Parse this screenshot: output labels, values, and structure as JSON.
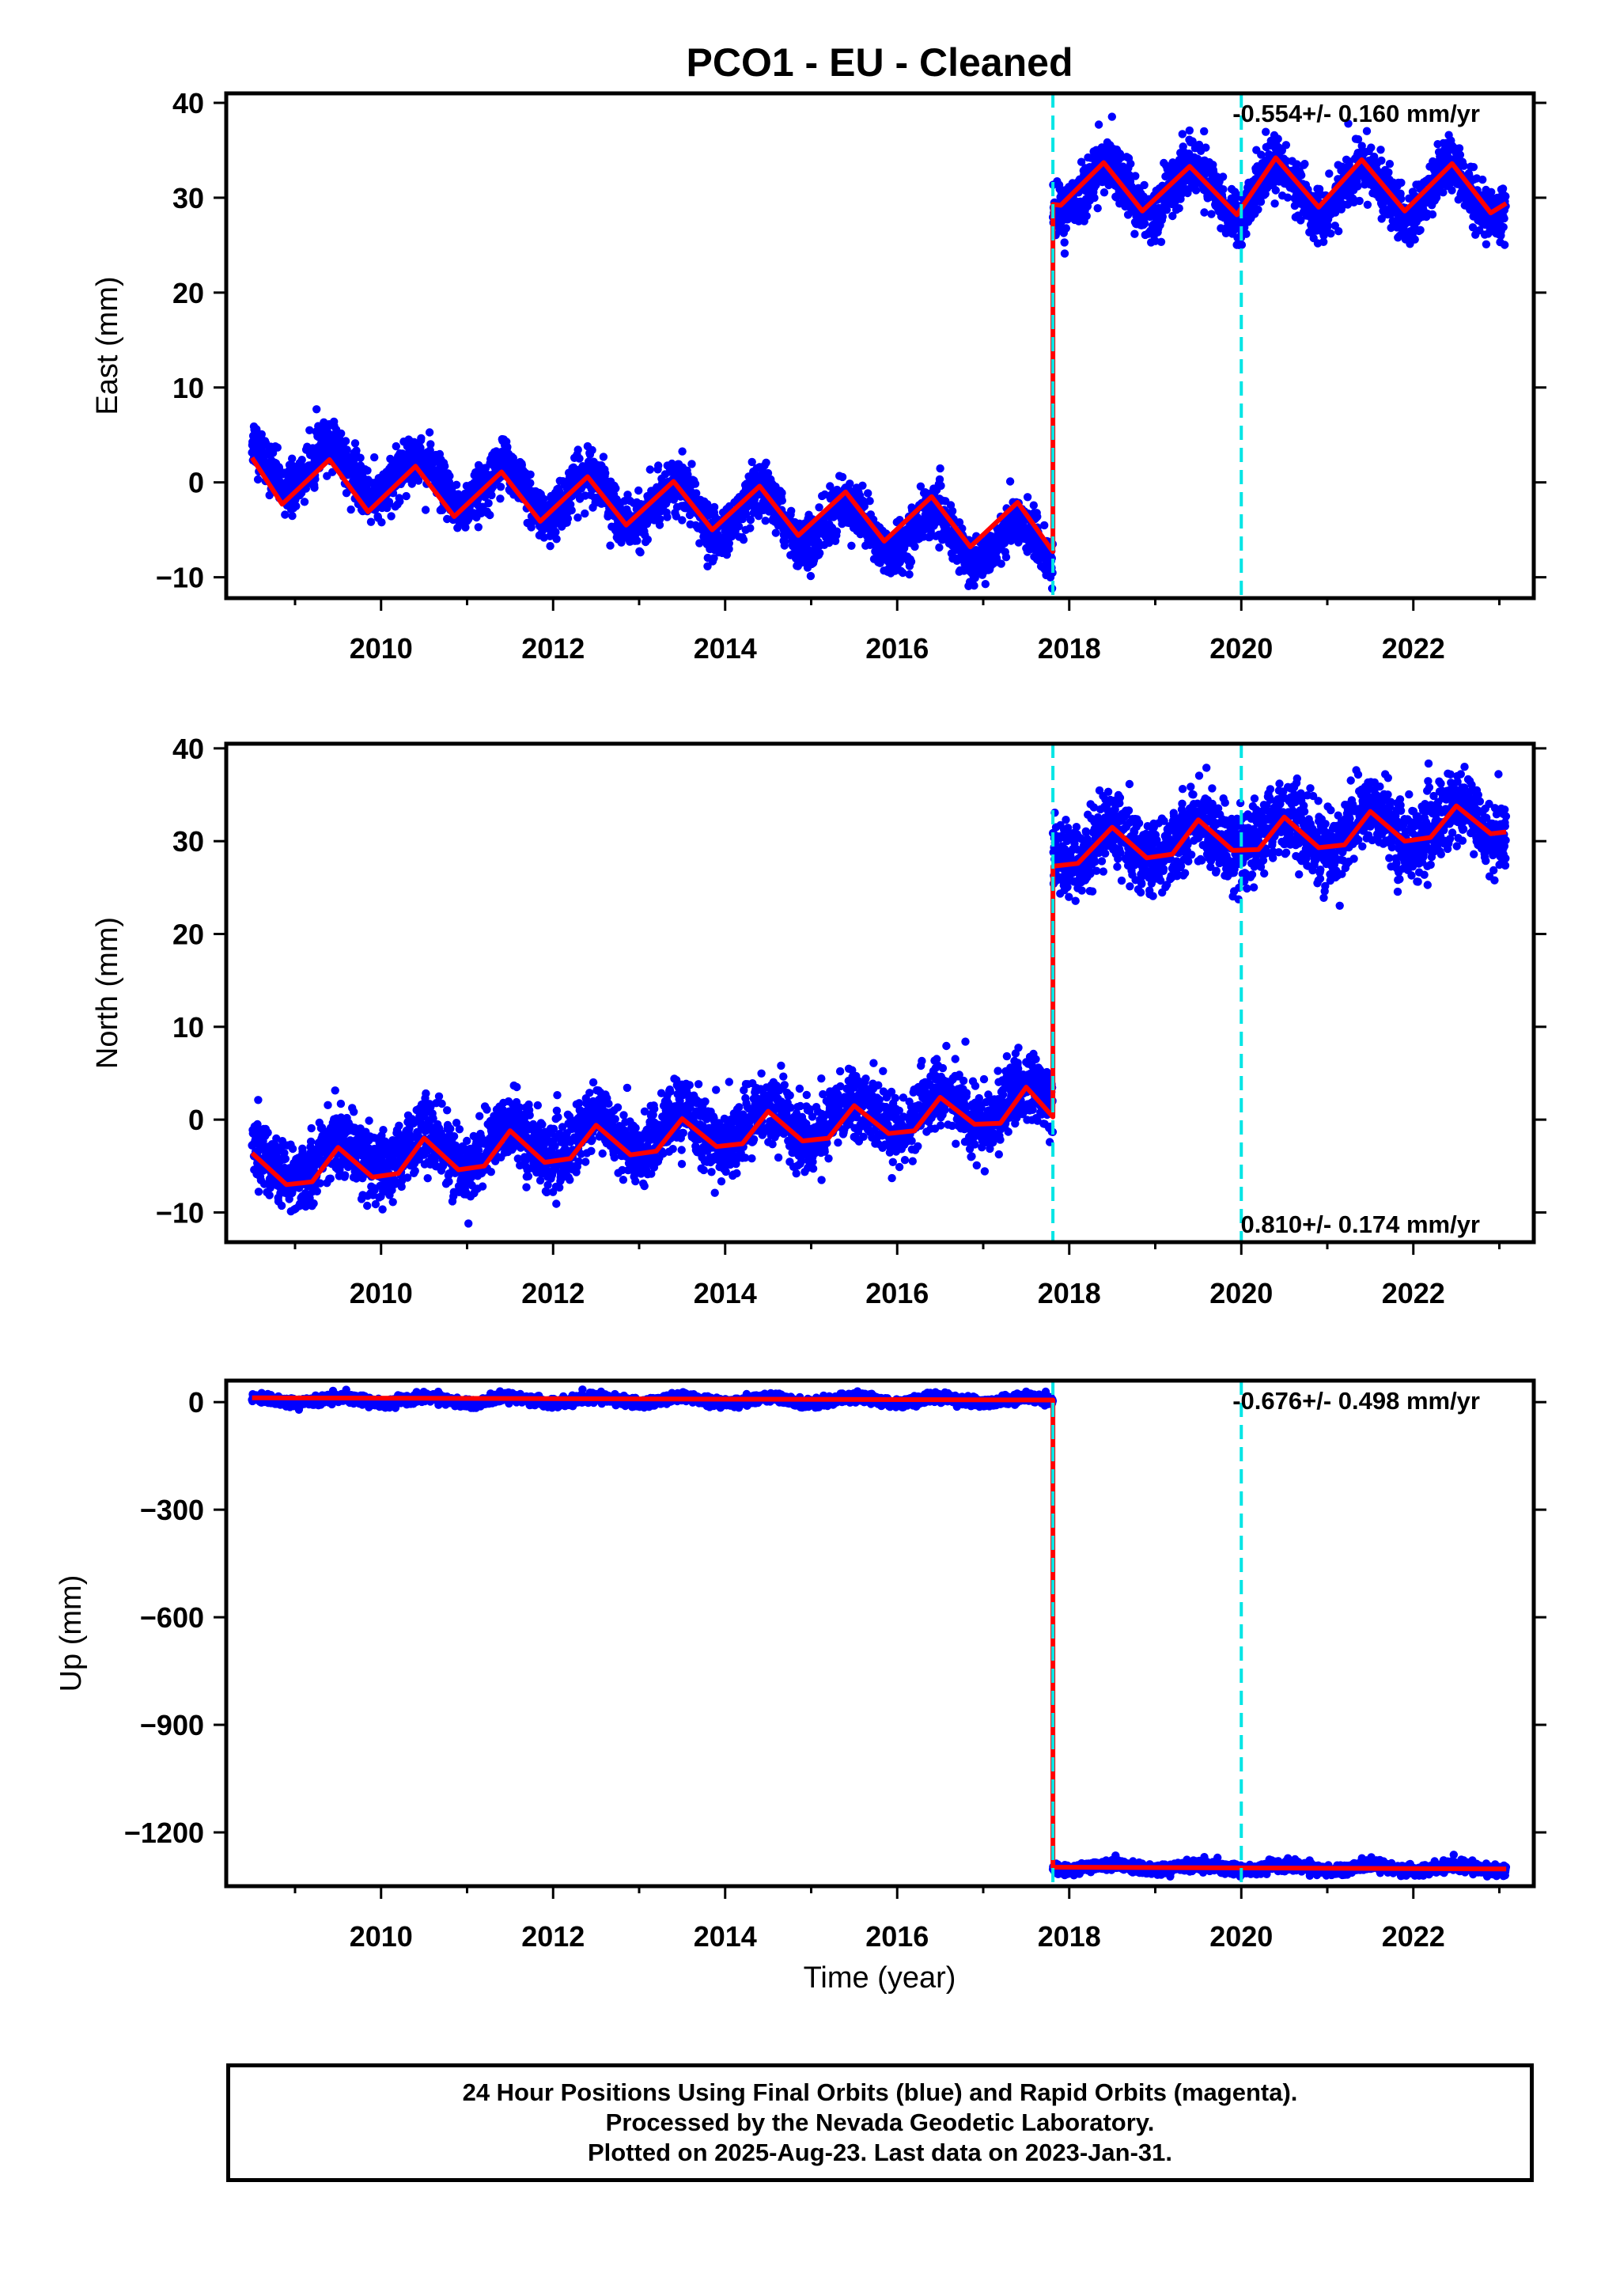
{
  "title": "PCO1  - EU - Cleaned",
  "xlabel": "Time (year)",
  "colors": {
    "data": "#0000ff",
    "model": "#ff0000",
    "breaks": "#00e5e5",
    "frame": "#000000"
  },
  "chart_data": [
    {
      "type": "scatter",
      "name": "east",
      "ylabel": "East (mm)",
      "rate_text": "-0.554+/- 0.160 mm/yr",
      "rate_position": "top-right",
      "xlim": [
        2008.2,
        2023.4
      ],
      "ylim": [
        -12.2,
        41
      ],
      "x_ticks": [
        2010,
        2012,
        2014,
        2016,
        2018,
        2020,
        2022
      ],
      "x_tick_labels": [
        "2010",
        "2012",
        "2014",
        "2016",
        "2018",
        "2020",
        "2022"
      ],
      "y_ticks": [
        -10,
        0,
        10,
        20,
        30,
        40
      ],
      "y_tick_labels": [
        "−10",
        "0",
        "10",
        "20",
        "30",
        "40"
      ],
      "breaks": [
        2017.81,
        2020.0
      ],
      "segments": [
        {
          "x_start": 2008.5,
          "x_end": 2017.81,
          "offset": 2.3,
          "trend": -1.0,
          "amplitude": 2.5,
          "peak": 0.42,
          "noise": 1.3
        },
        {
          "x_start": 2017.81,
          "x_end": 2023.08,
          "offset": 31.0,
          "trend": -0.1,
          "amplitude": 2.6,
          "peak": 0.42,
          "noise": 1.4
        }
      ],
      "model_points": [
        [
          2008.5,
          2.6
        ],
        [
          2008.85,
          -2.3
        ],
        [
          2009.4,
          2.4
        ],
        [
          2009.85,
          -3.1
        ],
        [
          2010.4,
          1.7
        ],
        [
          2010.85,
          -3.6
        ],
        [
          2011.4,
          1.1
        ],
        [
          2011.85,
          -4.1
        ],
        [
          2012.4,
          0.6
        ],
        [
          2012.85,
          -4.5
        ],
        [
          2013.4,
          0.1
        ],
        [
          2013.85,
          -5.0
        ],
        [
          2014.4,
          -0.4
        ],
        [
          2014.85,
          -5.6
        ],
        [
          2015.4,
          -1.0
        ],
        [
          2015.85,
          -6.2
        ],
        [
          2016.4,
          -1.5
        ],
        [
          2016.85,
          -6.8
        ],
        [
          2017.4,
          -2.1
        ],
        [
          2017.81,
          -7.3
        ],
        [
          2017.81,
          29.3
        ],
        [
          2017.9,
          29.2
        ],
        [
          2018.4,
          33.7
        ],
        [
          2018.85,
          28.6
        ],
        [
          2019.4,
          33.3
        ],
        [
          2019.95,
          28.2
        ],
        [
          2020.4,
          34.2
        ],
        [
          2020.9,
          29.0
        ],
        [
          2021.4,
          34.0
        ],
        [
          2021.9,
          28.6
        ],
        [
          2022.45,
          33.6
        ],
        [
          2022.9,
          28.4
        ],
        [
          2023.08,
          29.4
        ]
      ]
    },
    {
      "type": "scatter",
      "name": "north",
      "ylabel": "North (mm)",
      "rate_text": "0.810+/- 0.174 mm/yr",
      "rate_position": "bottom-right",
      "xlim": [
        2008.2,
        2023.4
      ],
      "ylim": [
        -13.2,
        40.5
      ],
      "x_ticks": [
        2010,
        2012,
        2014,
        2016,
        2018,
        2020,
        2022
      ],
      "x_tick_labels": [
        "2010",
        "2012",
        "2014",
        "2016",
        "2018",
        "2020",
        "2022"
      ],
      "y_ticks": [
        -10,
        0,
        10,
        20,
        30,
        40
      ],
      "y_tick_labels": [
        "−10",
        "0",
        "10",
        "20",
        "30",
        "40"
      ],
      "breaks": [
        2017.81,
        2020.0
      ],
      "segments": [
        {
          "x_start": 2008.5,
          "x_end": 2017.81,
          "offset": -5.0,
          "trend": 0.75,
          "amplitude": 2.0,
          "peak": 0.5,
          "noise": 1.8
        },
        {
          "x_start": 2017.81,
          "x_end": 2023.08,
          "offset": 29.2,
          "trend": 0.55,
          "amplitude": 2.0,
          "peak": 0.5,
          "noise": 2.0
        }
      ],
      "model_points": [
        [
          2008.5,
          -3.6
        ],
        [
          2008.9,
          -7.0
        ],
        [
          2009.2,
          -6.7
        ],
        [
          2009.5,
          -3.0
        ],
        [
          2009.9,
          -6.2
        ],
        [
          2010.2,
          -5.8
        ],
        [
          2010.5,
          -2.0
        ],
        [
          2010.9,
          -5.4
        ],
        [
          2011.2,
          -5.0
        ],
        [
          2011.5,
          -1.2
        ],
        [
          2011.9,
          -4.6
        ],
        [
          2012.2,
          -4.2
        ],
        [
          2012.5,
          -0.6
        ],
        [
          2012.9,
          -3.8
        ],
        [
          2013.2,
          -3.4
        ],
        [
          2013.5,
          0.1
        ],
        [
          2013.9,
          -2.9
        ],
        [
          2014.2,
          -2.6
        ],
        [
          2014.5,
          0.9
        ],
        [
          2014.9,
          -2.3
        ],
        [
          2015.2,
          -2.0
        ],
        [
          2015.5,
          1.5
        ],
        [
          2015.9,
          -1.5
        ],
        [
          2016.2,
          -1.2
        ],
        [
          2016.5,
          2.4
        ],
        [
          2016.9,
          -0.5
        ],
        [
          2017.2,
          -0.4
        ],
        [
          2017.5,
          3.5
        ],
        [
          2017.81,
          0.3
        ],
        [
          2017.81,
          27.3
        ],
        [
          2018.1,
          27.6
        ],
        [
          2018.5,
          31.5
        ],
        [
          2018.9,
          28.2
        ],
        [
          2019.2,
          28.6
        ],
        [
          2019.5,
          32.3
        ],
        [
          2019.9,
          29.0
        ],
        [
          2020.2,
          29.1
        ],
        [
          2020.5,
          32.6
        ],
        [
          2020.9,
          29.3
        ],
        [
          2021.2,
          29.6
        ],
        [
          2021.5,
          33.2
        ],
        [
          2021.9,
          30.0
        ],
        [
          2022.2,
          30.4
        ],
        [
          2022.5,
          33.8
        ],
        [
          2022.9,
          30.8
        ],
        [
          2023.08,
          31.0
        ]
      ]
    },
    {
      "type": "scatter",
      "name": "up",
      "ylabel": "Up (mm)",
      "rate_text": "-0.676+/- 0.498 mm/yr",
      "rate_position": "top-right",
      "xlim": [
        2008.2,
        2023.4
      ],
      "ylim": [
        -1350,
        60
      ],
      "x_ticks": [
        2010,
        2012,
        2014,
        2016,
        2018,
        2020,
        2022
      ],
      "x_tick_labels": [
        "2010",
        "2012",
        "2014",
        "2016",
        "2018",
        "2020",
        "2022"
      ],
      "y_ticks": [
        -1200,
        -900,
        -600,
        -300,
        0
      ],
      "y_tick_labels": [
        "−1200",
        "−900",
        "−600",
        "−300",
        "0"
      ],
      "breaks": [
        2017.81,
        2020.0
      ],
      "segments": [
        {
          "x_start": 2008.5,
          "x_end": 2017.81,
          "offset": 5,
          "trend": 0.0,
          "amplitude": 8,
          "peak": 0.5,
          "noise": 6
        },
        {
          "x_start": 2017.81,
          "x_end": 2023.08,
          "offset": -1297,
          "trend": -0.7,
          "amplitude": 8,
          "peak": 0.5,
          "noise": 7
        }
      ],
      "model_points": [
        [
          2008.5,
          12
        ],
        [
          2017.81,
          6
        ],
        [
          2017.81,
          -1297
        ],
        [
          2023.08,
          -1302
        ]
      ]
    }
  ],
  "footer": {
    "line1": "24 Hour Positions Using Final Orbits (blue) and Rapid Orbits (magenta).",
    "line2": "Processed by the Nevada Geodetic Laboratory.",
    "line3": "Plotted on 2025-Aug-23. Last data on 2023-Jan-31."
  }
}
